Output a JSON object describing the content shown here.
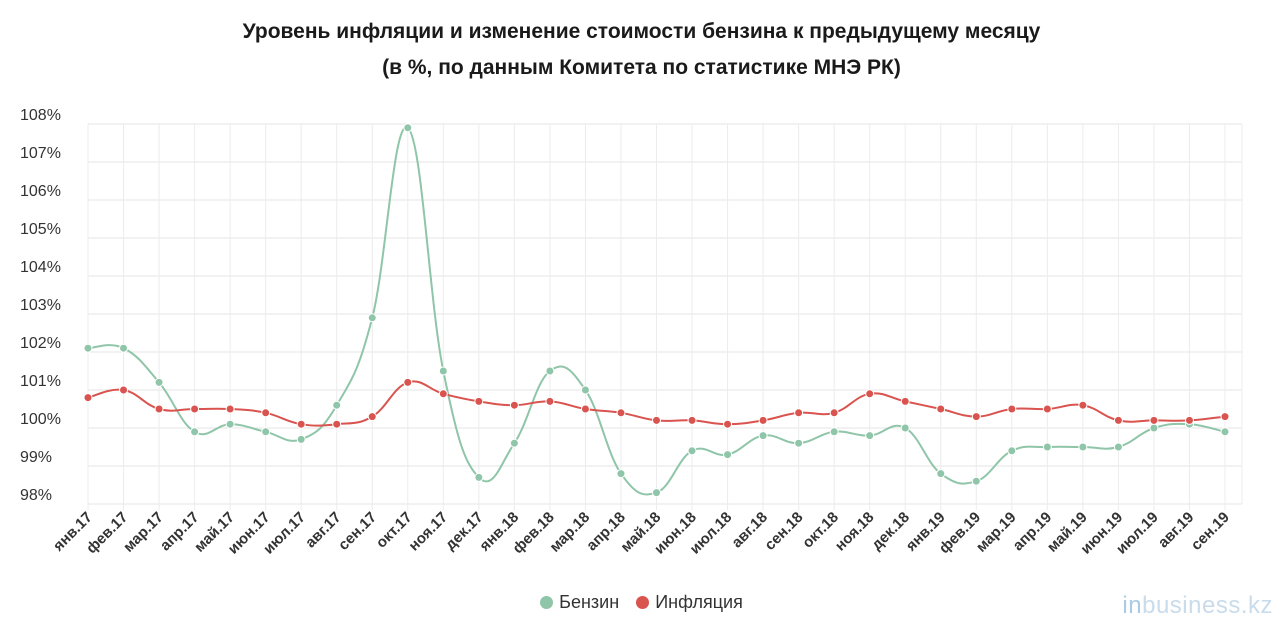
{
  "title_line1": "Уровень инфляции и изменение стоимости бензина к предыдущему месяцу",
  "title_line2": "(в %, по данным Комитета по статистике МНЭ РК)",
  "watermark_prefix": "in",
  "watermark_suffix": "business.kz",
  "chart_data": {
    "type": "line",
    "categories": [
      "янв.17",
      "фев.17",
      "мар.17",
      "апр.17",
      "май.17",
      "июн.17",
      "июл.17",
      "авг.17",
      "сен.17",
      "окт.17",
      "ноя.17",
      "дек.17",
      "янв.18",
      "фев.18",
      "мар.18",
      "апр.18",
      "май.18",
      "июн.18",
      "июл.18",
      "авг.18",
      "сен.18",
      "окт.18",
      "ноя.18",
      "дек.18",
      "янв.19",
      "фев.19",
      "мар.19",
      "апр.19",
      "май.19",
      "июн.19",
      "июл.19",
      "авг.19",
      "сен.19"
    ],
    "series": [
      {
        "name": "Бензин",
        "color": "#8fc5a8",
        "values": [
          102.1,
          102.1,
          101.2,
          99.9,
          100.1,
          99.9,
          99.7,
          100.6,
          102.9,
          107.9,
          101.5,
          98.7,
          99.6,
          101.5,
          101.0,
          98.8,
          98.3,
          99.4,
          99.3,
          99.8,
          99.6,
          99.9,
          99.8,
          100.0,
          98.8,
          98.6,
          99.4,
          99.5,
          99.5,
          99.5,
          100.0,
          100.1,
          99.9
        ]
      },
      {
        "name": "Инфляция",
        "color": "#d9534f",
        "values": [
          100.8,
          101.0,
          100.5,
          100.5,
          100.5,
          100.4,
          100.1,
          100.1,
          100.3,
          101.2,
          100.9,
          100.7,
          100.6,
          100.7,
          100.5,
          100.4,
          100.2,
          100.2,
          100.1,
          100.2,
          100.4,
          100.4,
          100.9,
          100.7,
          100.5,
          100.3,
          100.5,
          100.5,
          100.6,
          100.2,
          100.2,
          100.2,
          100.3
        ]
      }
    ],
    "y_ticks": [
      "108%",
      "107%",
      "106%",
      "105%",
      "104%",
      "103%",
      "102%",
      "101%",
      "100%",
      "99%",
      "98%"
    ],
    "ylim": [
      98,
      108
    ],
    "grid": true,
    "legend_position": "bottom-center"
  }
}
